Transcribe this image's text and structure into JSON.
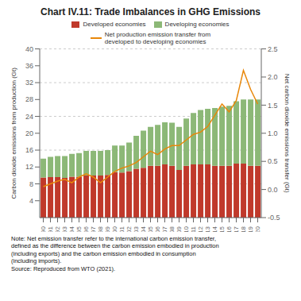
{
  "chart_data": {
    "type": "bar",
    "title": "Chart IV.11: Trade Imbalances in GHG Emissions",
    "categories": [
      "90",
      "91",
      "92",
      "93",
      "94",
      "95",
      "96",
      "97",
      "98",
      "99",
      "00",
      "01",
      "02",
      "03",
      "04",
      "05",
      "06",
      "07",
      "08",
      "09",
      "10",
      "11",
      "12",
      "13",
      "14",
      "15",
      "16",
      "17",
      "18",
      "19",
      "20"
    ],
    "stacked": true,
    "grid": true,
    "series": [
      {
        "name": "Developed economies",
        "type": "bar",
        "color": "#c0392b",
        "values": [
          9.5,
          9.6,
          9.6,
          9.4,
          9.7,
          9.7,
          10.0,
          10.0,
          10.0,
          10.1,
          10.8,
          10.7,
          11.0,
          11.6,
          11.8,
          12.3,
          12.3,
          12.6,
          12.3,
          11.3,
          12.3,
          12.6,
          12.6,
          12.6,
          12.3,
          12.3,
          12.3,
          12.8,
          12.8,
          12.3,
          12.3
        ]
      },
      {
        "name": "Developing economies",
        "type": "bar",
        "color": "#8cb877",
        "values": [
          4.5,
          4.8,
          5.0,
          5.2,
          5.4,
          5.6,
          5.8,
          5.8,
          5.8,
          5.9,
          6.3,
          6.4,
          6.8,
          7.8,
          8.8,
          9.2,
          9.7,
          10.0,
          10.2,
          10.2,
          11.2,
          12.2,
          12.9,
          13.2,
          13.7,
          14.0,
          14.2,
          14.8,
          15.2,
          15.7,
          15.7
        ]
      },
      {
        "name": "Net production emission transfer from\ndeveloped to developing economies",
        "type": "line",
        "axis": "y2",
        "color": "#e8870a",
        "values": [
          0.05,
          0.1,
          0.15,
          0.18,
          0.12,
          0.22,
          0.28,
          0.22,
          0.12,
          0.22,
          0.32,
          0.38,
          0.42,
          0.48,
          0.58,
          0.68,
          0.62,
          0.72,
          0.78,
          0.78,
          0.88,
          0.98,
          1.02,
          1.12,
          1.32,
          1.52,
          1.38,
          1.58,
          2.12,
          1.78,
          1.52
        ]
      }
    ],
    "ylabel": "Carbon dioxide emissions from production (Gt)",
    "y2label": "Net carbon dioxide emissions transfer (Gt)",
    "ylim": [
      0,
      40
    ],
    "yticks": [
      4,
      8,
      12,
      16,
      20,
      24,
      28,
      32,
      36,
      40
    ],
    "y2lim": [
      -0.5,
      2.5
    ],
    "y2ticks": [
      -0.5,
      {
        "value": 0,
        "label": "0.0"
      },
      0.5,
      {
        "value": 1,
        "label": "1.0"
      },
      1.5,
      {
        "value": 2,
        "label": "2.0"
      },
      2.5
    ],
    "note": "Note: Net emission transfer refer to the international carbon emission transfer,\ndefined as the difference between the carbon emission embodied in production\n(including exports) and the carbon emission embodied in consumption\n(including imports).\nSource: Reproduced from WTO (2021)."
  }
}
